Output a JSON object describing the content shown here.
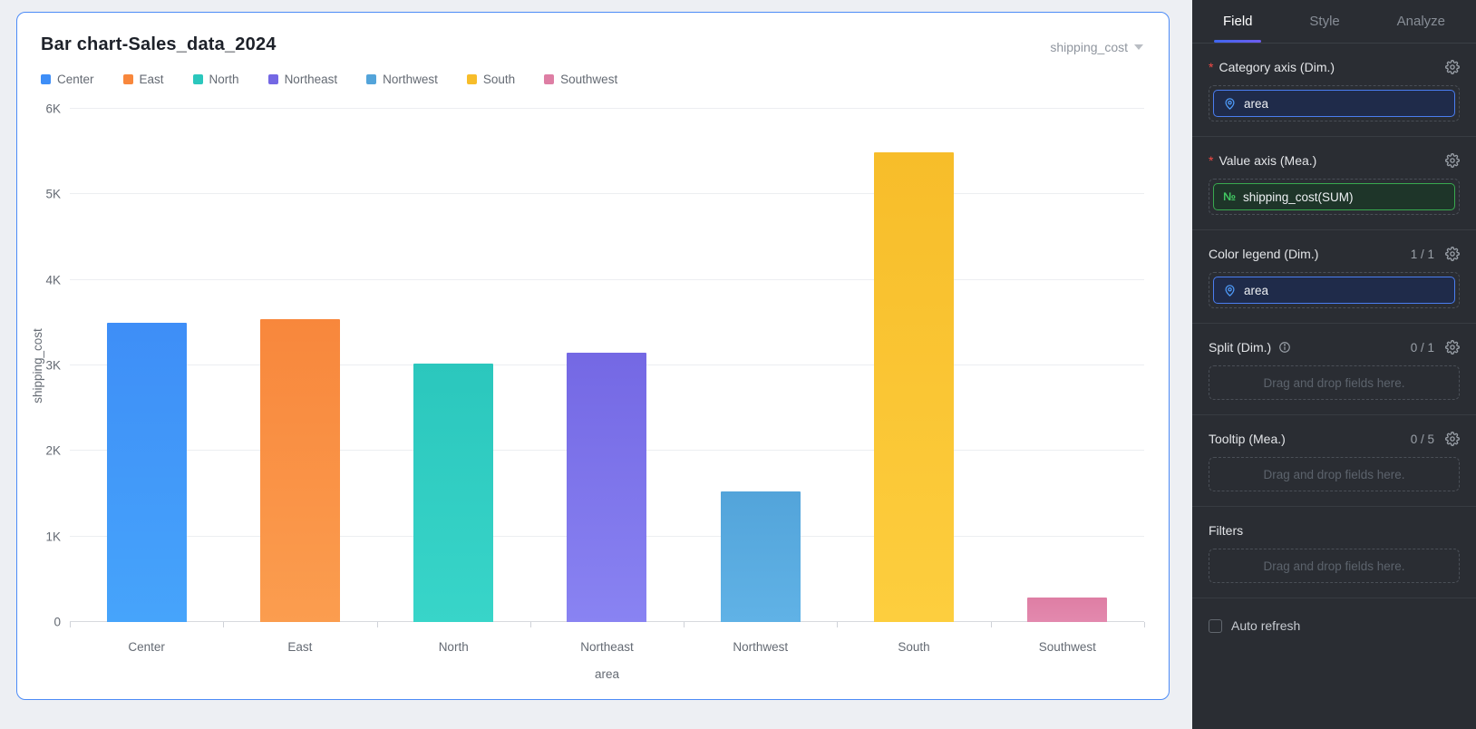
{
  "chart_panel": {
    "title": "Bar chart-Sales_data_2024",
    "measure_dropdown_label": "shipping_cost"
  },
  "chart_data": {
    "type": "bar",
    "title": "Bar chart-Sales_data_2024",
    "categories": [
      "Center",
      "East",
      "North",
      "Northeast",
      "Northwest",
      "South",
      "Southwest"
    ],
    "values": [
      3500,
      3540,
      3020,
      3150,
      1530,
      5490,
      290
    ],
    "bar_colors_top": [
      "#3E8EF7",
      "#F8873C",
      "#2BC7BD",
      "#7468E4",
      "#53A4DA",
      "#F7BD2A",
      "#DE7EA4"
    ],
    "bar_colors_bottom": [
      "#46A4FB",
      "#FB9D4F",
      "#38D5C9",
      "#8983F2",
      "#60B2E6",
      "#FDCE3E",
      "#E389AE"
    ],
    "xlabel": "area",
    "ylabel": "shipping_cost",
    "ylim": [
      0,
      6000
    ],
    "yticks": [
      {
        "value": 0,
        "label": "0"
      },
      {
        "value": 1000,
        "label": "1K"
      },
      {
        "value": 2000,
        "label": "2K"
      },
      {
        "value": 3000,
        "label": "3K"
      },
      {
        "value": 4000,
        "label": "4K"
      },
      {
        "value": 5000,
        "label": "5K"
      },
      {
        "value": 6000,
        "label": "6K"
      }
    ],
    "legend": [
      "Center",
      "East",
      "North",
      "Northeast",
      "Northwest",
      "South",
      "Southwest"
    ],
    "legend_position": "top-left",
    "grid": true
  },
  "sidebar": {
    "tabs": [
      {
        "label": "Field",
        "active": true
      },
      {
        "label": "Style",
        "active": false
      },
      {
        "label": "Analyze",
        "active": false
      }
    ],
    "sections": {
      "category_axis": {
        "title": "Category axis (Dim.)",
        "required": true,
        "fields": [
          {
            "name": "area",
            "type": "dimension"
          }
        ]
      },
      "value_axis": {
        "title": "Value axis (Mea.)",
        "required": true,
        "fields": [
          {
            "name": "shipping_cost(SUM)",
            "type": "measure"
          }
        ]
      },
      "color_legend": {
        "title": "Color legend (Dim.)",
        "count": "1 / 1",
        "fields": [
          {
            "name": "area",
            "type": "dimension"
          }
        ]
      },
      "split": {
        "title": "Split (Dim.)",
        "count": "0 / 1",
        "placeholder": "Drag and drop fields here."
      },
      "tooltip": {
        "title": "Tooltip (Mea.)",
        "count": "0 / 5",
        "placeholder": "Drag and drop fields here."
      },
      "filters": {
        "title": "Filters",
        "placeholder": "Drag and drop fields here."
      }
    },
    "auto_refresh": {
      "label": "Auto refresh",
      "checked": false
    }
  },
  "colors": {
    "card_border": "#4C8BF7",
    "sidebar_bg": "#2A2D33",
    "accent_blue": "#4A7DF0",
    "accent_green": "#34C724",
    "required_red": "#F54A45",
    "tab_underline": "#4F62EC"
  }
}
